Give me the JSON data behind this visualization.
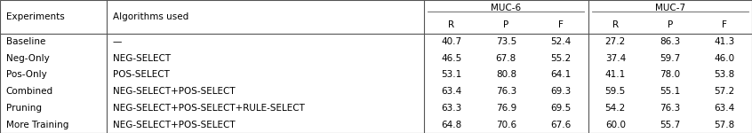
{
  "col_headers_row1": [
    "Experiments",
    "Algorithms used",
    "MUC-6",
    "",
    "",
    "MUC-7",
    "",
    ""
  ],
  "col_headers_row2": [
    "",
    "",
    "R",
    "P",
    "F",
    "R",
    "P",
    "F"
  ],
  "rows": [
    [
      "Baseline",
      "—",
      "40.7",
      "73.5",
      "52.4",
      "27.2",
      "86.3",
      "41.3"
    ],
    [
      "Neg-Only",
      "NEG-SELECT",
      "46.5",
      "67.8",
      "55.2",
      "37.4",
      "59.7",
      "46.0"
    ],
    [
      "Pos-Only",
      "POS-SELECT",
      "53.1",
      "80.8",
      "64.1",
      "41.1",
      "78.0",
      "53.8"
    ],
    [
      "Combined",
      "NEG-SELECT+POS-SELECT",
      "63.4",
      "76.3",
      "69.3",
      "59.5",
      "55.1",
      "57.2"
    ],
    [
      "Pruning",
      "NEG-SELECT+POS-SELECT+RULE-SELECT",
      "63.3",
      "76.9",
      "69.5",
      "54.2",
      "76.3",
      "63.4"
    ],
    [
      "More Training",
      "NEG-SELECT+POS-SELECT",
      "64.8",
      "70.6",
      "67.6",
      "60.0",
      "55.7",
      "57.8"
    ]
  ],
  "font_size": 7.5,
  "bg_color": "white",
  "line_color": "#555555",
  "text_color": "black"
}
